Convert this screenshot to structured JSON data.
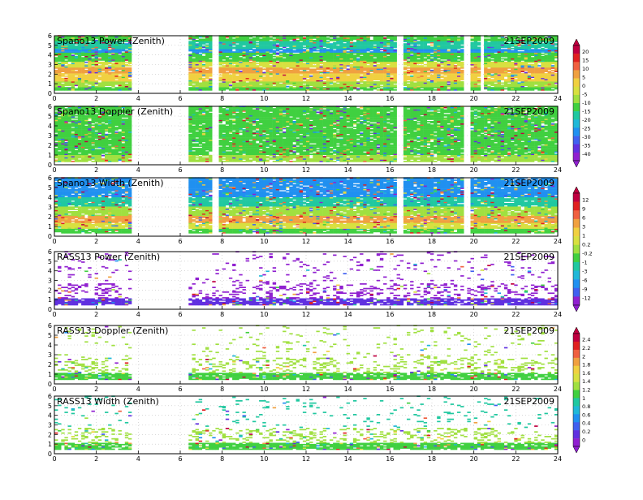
{
  "figure": {
    "date": "21SEP2009",
    "xticks": [
      0,
      2,
      4,
      6,
      8,
      10,
      12,
      14,
      16,
      18,
      20,
      22,
      24
    ],
    "yticks": [
      0,
      1,
      2,
      3,
      4,
      5,
      6
    ]
  },
  "colorbars": [
    {
      "labels": [
        "20",
        "15",
        "10",
        "5",
        "0",
        "-5",
        "-10",
        "-15",
        "-20",
        "-25",
        "-30",
        "-35",
        "-40"
      ],
      "colors": [
        "#c00040",
        "#e02020",
        "#f06040",
        "#f0a040",
        "#f0d040",
        "#d8e040",
        "#a0e040",
        "#40d040",
        "#20c8a0",
        "#20b8d8",
        "#2090f0",
        "#4060f0",
        "#6030e0",
        "#9020d0"
      ]
    },
    {
      "labels": [
        "12",
        "9",
        "6",
        "3",
        "1",
        "0.2",
        "-0.2",
        "-1",
        "-3",
        "-6",
        "-9",
        "-12"
      ],
      "colors": [
        "#c00040",
        "#e02020",
        "#f06040",
        "#f0a040",
        "#f0d040",
        "#d8e040",
        "#a0e040",
        "#40d040",
        "#20c8a0",
        "#20b8d8",
        "#2090f0",
        "#4060f0",
        "#9020d0"
      ]
    },
    {
      "labels": [
        "2.4",
        "2.2",
        "2",
        "1.8",
        "1.6",
        "1.4",
        "1.2",
        "1",
        "0.8",
        "0.6",
        "0.4",
        "0.2",
        "0"
      ],
      "colors": [
        "#c00040",
        "#e02020",
        "#f06040",
        "#f0a040",
        "#f0d040",
        "#d8e040",
        "#a0e040",
        "#40d040",
        "#20c8a0",
        "#20b8d8",
        "#2090f0",
        "#4060f0",
        "#6030e0",
        "#9020d0"
      ]
    }
  ],
  "chart_data": [
    {
      "type": "heatmap",
      "title": "Spano13 Power (Zenith)",
      "date_label": "21SEP2009",
      "xlim": [
        0,
        24
      ],
      "ylim": [
        0,
        6
      ],
      "colorbar": 0,
      "coverage": "dense",
      "gaps": [
        [
          3.7,
          6.4
        ],
        [
          7.5,
          7.9
        ],
        [
          16.3,
          16.6
        ],
        [
          19.6,
          19.8
        ],
        [
          20.3,
          20.5
        ]
      ],
      "bands": [
        {
          "y0": 0.0,
          "y1": 0.6,
          "color": "#40d040"
        },
        {
          "y0": 0.6,
          "y1": 1.2,
          "color": "#a0e040"
        },
        {
          "y0": 1.2,
          "y1": 2.0,
          "color": "#f0d040"
        },
        {
          "y0": 2.0,
          "y1": 2.7,
          "color": "#f0a040"
        },
        {
          "y0": 2.7,
          "y1": 3.3,
          "color": "#d8e040"
        },
        {
          "y0": 3.3,
          "y1": 4.2,
          "color": "#40d040"
        },
        {
          "y0": 4.2,
          "y1": 4.6,
          "color": "#2090f0"
        },
        {
          "y0": 4.6,
          "y1": 5.4,
          "color": "#20c8a0"
        },
        {
          "y0": 5.4,
          "y1": 6.0,
          "color": "#40d040"
        }
      ]
    },
    {
      "type": "heatmap",
      "title": "Spano13 Doppler (Zenith)",
      "date_label": "21SEP2009",
      "xlim": [
        0,
        24
      ],
      "ylim": [
        0,
        6
      ],
      "colorbar": 0,
      "coverage": "dense",
      "gaps": [
        [
          3.7,
          6.4
        ],
        [
          7.5,
          7.9
        ],
        [
          16.3,
          16.6
        ],
        [
          19.6,
          19.8
        ]
      ],
      "bands": [
        {
          "y0": 0.0,
          "y1": 1.0,
          "color": "#a0e040"
        },
        {
          "y0": 1.0,
          "y1": 4.5,
          "color": "#40d040"
        },
        {
          "y0": 4.5,
          "y1": 5.2,
          "color": "#40d040"
        },
        {
          "y0": 5.2,
          "y1": 6.0,
          "color": "#40d040"
        }
      ]
    },
    {
      "type": "heatmap",
      "title": "Spano13 Width (Zenith)",
      "date_label": "21SEP2009",
      "xlim": [
        0,
        24
      ],
      "ylim": [
        0,
        6
      ],
      "colorbar": 1,
      "coverage": "dense",
      "gaps": [
        [
          3.7,
          6.4
        ],
        [
          7.5,
          7.9
        ],
        [
          16.3,
          16.6
        ],
        [
          19.6,
          19.8
        ]
      ],
      "bands": [
        {
          "y0": 0.0,
          "y1": 0.7,
          "color": "#40d040"
        },
        {
          "y0": 0.7,
          "y1": 1.3,
          "color": "#d8e040"
        },
        {
          "y0": 1.3,
          "y1": 2.0,
          "color": "#f0a040"
        },
        {
          "y0": 2.0,
          "y1": 3.0,
          "color": "#a0e040"
        },
        {
          "y0": 3.0,
          "y1": 4.0,
          "color": "#20c8a0"
        },
        {
          "y0": 4.0,
          "y1": 5.0,
          "color": "#2090f0"
        },
        {
          "y0": 5.0,
          "y1": 6.0,
          "color": "#2090f0"
        }
      ]
    },
    {
      "type": "heatmap",
      "title": "RASS13 Power (Zenith)",
      "date_label": "21SEP2009",
      "xlim": [
        0,
        24
      ],
      "ylim": [
        0,
        6
      ],
      "colorbar": 1,
      "coverage": "sparse",
      "gaps": [
        [
          3.7,
          6.4
        ]
      ],
      "bands": [
        {
          "y0": 0.4,
          "y1": 1.1,
          "color": "#6030e0"
        },
        {
          "y0": 1.1,
          "y1": 2.6,
          "color": "#9020d0"
        },
        {
          "y0": 2.6,
          "y1": 6.0,
          "color": "#9020d0"
        }
      ]
    },
    {
      "type": "heatmap",
      "title": "RASS13 Doppler (Zenith)",
      "date_label": "21SEP2009",
      "xlim": [
        0,
        24
      ],
      "ylim": [
        0,
        6
      ],
      "colorbar": 2,
      "coverage": "sparse",
      "gaps": [
        [
          3.7,
          6.4
        ]
      ],
      "bands": [
        {
          "y0": 0.4,
          "y1": 1.1,
          "color": "#40d040"
        },
        {
          "y0": 1.1,
          "y1": 2.6,
          "color": "#a0e040"
        },
        {
          "y0": 2.6,
          "y1": 6.0,
          "color": "#a0e040"
        }
      ]
    },
    {
      "type": "heatmap",
      "title": "RASS13 Width (Zenith)",
      "date_label": "21SEP2009",
      "xlim": [
        0,
        24
      ],
      "ylim": [
        0,
        6
      ],
      "colorbar": 2,
      "coverage": "sparse",
      "gaps": [
        [
          3.7,
          6.4
        ]
      ],
      "bands": [
        {
          "y0": 0.4,
          "y1": 1.1,
          "color": "#40d040"
        },
        {
          "y0": 1.1,
          "y1": 2.6,
          "color": "#a0e040"
        },
        {
          "y0": 2.6,
          "y1": 6.0,
          "color": "#20c8a0"
        }
      ]
    }
  ]
}
